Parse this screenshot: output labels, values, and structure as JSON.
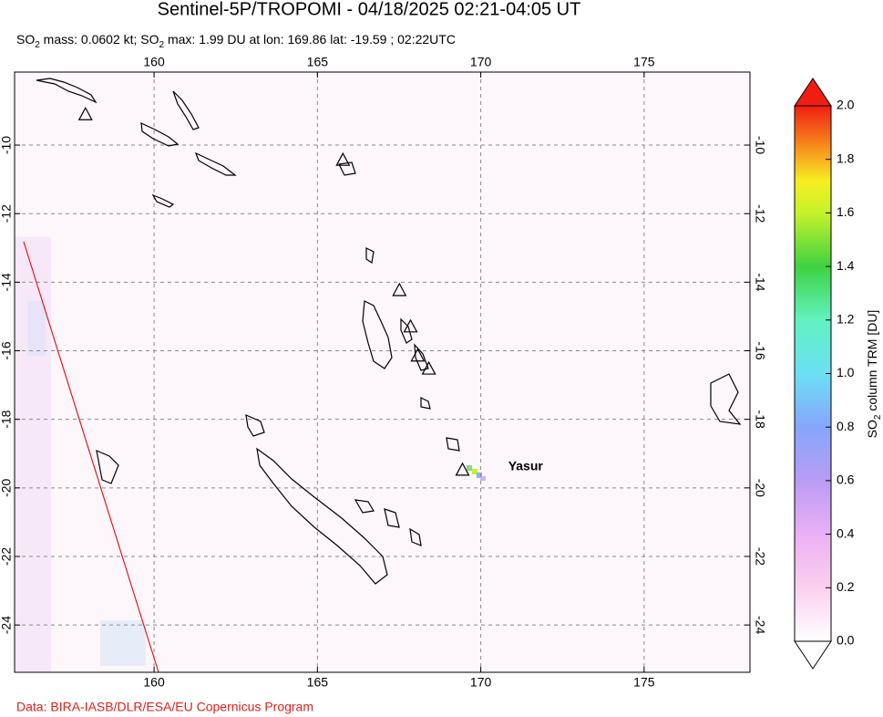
{
  "chart_data": {
    "type": "map",
    "title": "Sentinel-5P/TROPOMI - 04/18/2025 02:21-04:05 UT",
    "subtitle_parts": [
      "SO",
      "2",
      " mass: 0.0602 kt; SO",
      "2",
      " max: 1.99 DU at lon: 169.86 lat: -19.59 ; 02:22UTC"
    ],
    "xlim": [
      155.73,
      178.24
    ],
    "ylim": [
      -25.38,
      -7.87
    ],
    "xticks": [
      160,
      165,
      170,
      175
    ],
    "yticks": [
      -10,
      -12,
      -14,
      -16,
      -18,
      -20,
      -22,
      -24
    ],
    "grid": true,
    "volcanoes": {
      "lon": [
        157.9,
        165.78,
        167.51,
        167.85,
        168.07,
        168.41,
        169.44
      ],
      "lat": [
        -9.1,
        -10.43,
        -14.23,
        -15.29,
        -16.14,
        -16.52,
        -19.47
      ]
    },
    "annotations": [
      {
        "text": "Yasur",
        "lon": 170.84,
        "lat": -19.39
      }
    ],
    "colorbar": {
      "label_parts": [
        "SO",
        "2",
        " column TRM [DU]"
      ],
      "lim": [
        0,
        2
      ],
      "ticks": [
        {
          "value": 0,
          "label": "0.0"
        },
        0.2,
        0.4,
        0.6,
        0.8,
        {
          "value": 1,
          "label": "1.0"
        },
        1.2,
        1.4,
        1.6,
        1.8,
        {
          "value": 2,
          "label": "2.0"
        }
      ]
    },
    "footer": "Data: BIRA-IASB/DLR/ESA/EU Copernicus Program"
  }
}
